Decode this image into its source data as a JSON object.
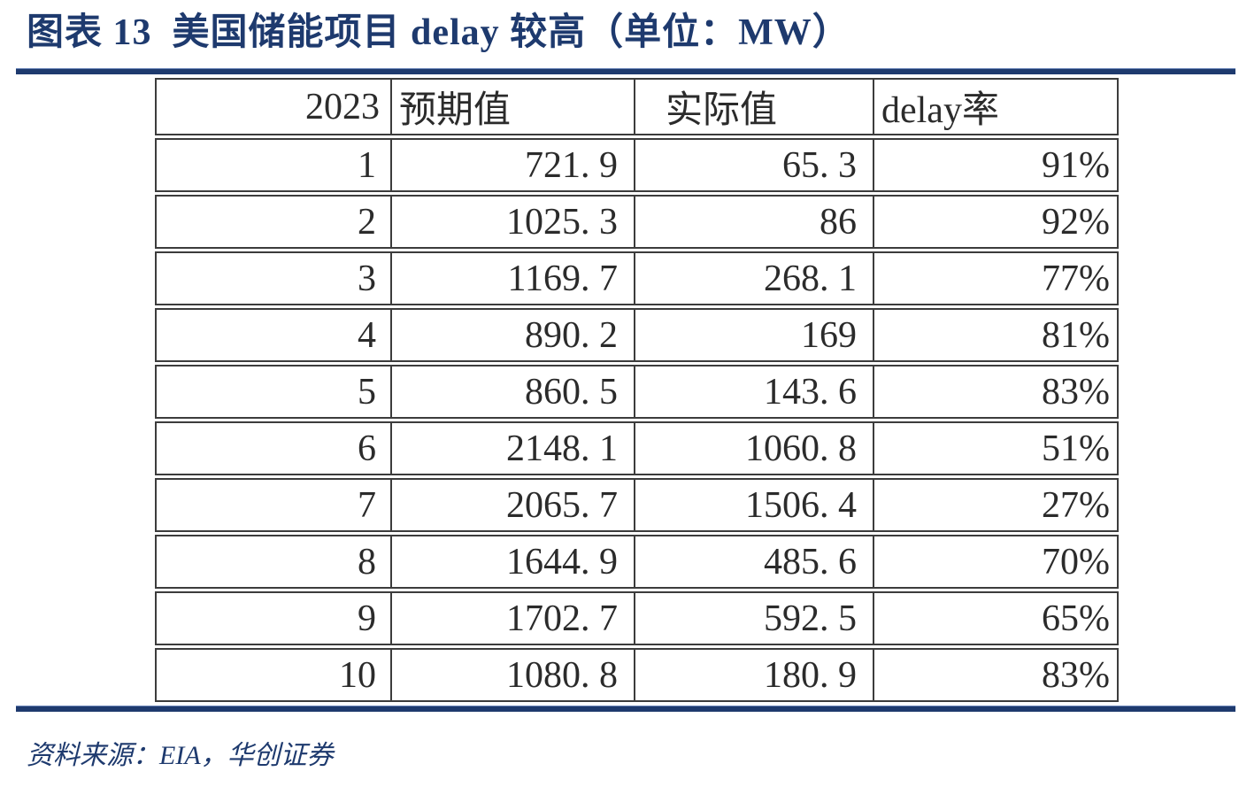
{
  "figure": {
    "title": "图表 13  美国储能项目 delay 较高（单位：MW）",
    "source_note": "资料来源：EIA，华创证券"
  },
  "colors": {
    "accent_navy": "#1e3a6e",
    "table_text": "#2b2b2b",
    "table_border": "#3c3c3c"
  },
  "chart_data": {
    "type": "table",
    "title": "美国储能项目 delay 较高",
    "unit": "MW",
    "figure_label": "图表 13",
    "columns": [
      "2023",
      "预期值",
      "实际值",
      "delay率"
    ],
    "rows": [
      [
        "1",
        "721.9",
        "65.3",
        "91%"
      ],
      [
        "2",
        "1025.3",
        "86",
        "92%"
      ],
      [
        "3",
        "1169.7",
        "268.1",
        "77%"
      ],
      [
        "4",
        "890.2",
        "169",
        "81%"
      ],
      [
        "5",
        "860.5",
        "143.6",
        "83%"
      ],
      [
        "6",
        "2148.1",
        "1060.8",
        "51%"
      ],
      [
        "7",
        "2065.7",
        "1506.4",
        "27%"
      ],
      [
        "8",
        "1644.9",
        "485.6",
        "70%"
      ],
      [
        "9",
        "1702.7",
        "592.5",
        "65%"
      ],
      [
        "10",
        "1080.8",
        "180.9",
        "83%"
      ]
    ]
  }
}
